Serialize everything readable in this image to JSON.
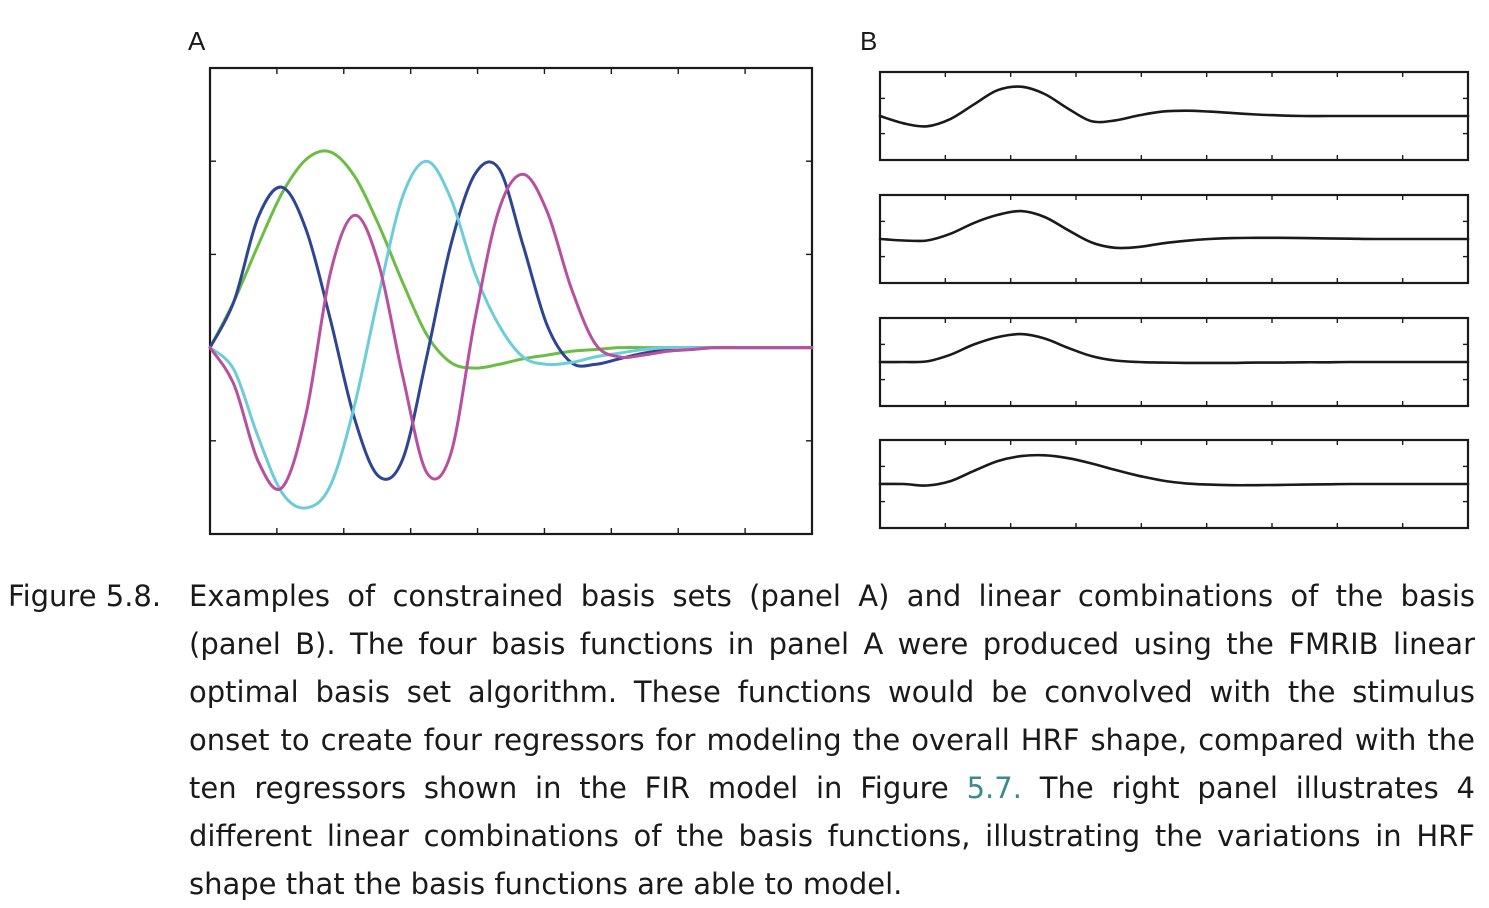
{
  "panel_labels": {
    "a": "A",
    "b": "B"
  },
  "caption": {
    "label": "Figure 5.8.",
    "text_before_link": "Examples of constrained basis sets (panel A) and linear combinations of the basis (panel B). The four basis functions in panel A were produced using the FMRIB linear optimal basis set algorithm. These functions would be convolved with the stimulus onset to create four regressors for modeling the overall HRF shape, compared with the ten regressors shown in the FIR model in Figure ",
    "link_text": "5.7.",
    "text_after_link": " The right panel illustrates 4 different linear combinations of the basis functions, illustrating the variations in HRF shape that the basis functions are able to model.",
    "link_color": "#3b8a8f"
  },
  "chart_data": [
    {
      "type": "line",
      "panel": "A",
      "title": "",
      "xlabel": "",
      "ylabel": "",
      "xlim": [
        0,
        25
      ],
      "ylim": [
        -1.0,
        1.5
      ],
      "grid": false,
      "x": [
        0,
        1,
        2,
        3,
        4,
        5,
        6,
        7,
        8,
        9,
        10,
        11,
        12,
        13,
        14,
        15,
        16,
        17,
        18,
        19,
        20,
        21,
        22,
        23,
        24,
        25
      ],
      "series": [
        {
          "color": "#6cbd45",
          "values": [
            0,
            0.25,
            0.55,
            0.83,
            1.01,
            1.05,
            0.92,
            0.66,
            0.35,
            0.07,
            -0.08,
            -0.11,
            -0.09,
            -0.06,
            -0.04,
            -0.02,
            -0.01,
            0,
            0,
            0,
            0,
            0,
            0,
            0,
            0,
            0
          ]
        },
        {
          "color": "#2e4494",
          "values": [
            0,
            0.25,
            0.7,
            0.86,
            0.63,
            0.15,
            -0.38,
            -0.69,
            -0.6,
            -0.05,
            0.55,
            0.93,
            0.96,
            0.55,
            0.12,
            -0.08,
            -0.09,
            -0.06,
            -0.03,
            -0.01,
            0,
            0,
            0,
            0,
            0,
            0
          ]
        },
        {
          "color": "#6ccdd8",
          "values": [
            0,
            -0.12,
            -0.48,
            -0.78,
            -0.86,
            -0.74,
            -0.31,
            0.28,
            0.81,
            1.0,
            0.8,
            0.4,
            0.12,
            -0.05,
            -0.09,
            -0.08,
            -0.05,
            -0.03,
            -0.01,
            0,
            0,
            0,
            0,
            0,
            0,
            0
          ]
        },
        {
          "color": "#b84f9f",
          "values": [
            0,
            -0.2,
            -0.61,
            -0.75,
            -0.35,
            0.4,
            0.71,
            0.45,
            -0.15,
            -0.67,
            -0.57,
            0.15,
            0.74,
            0.93,
            0.73,
            0.32,
            0.02,
            -0.05,
            -0.04,
            -0.02,
            -0.01,
            0,
            0,
            0,
            0,
            0
          ]
        }
      ]
    },
    {
      "type": "line",
      "panel": "B",
      "title": "",
      "xlabel": "",
      "ylabel": "",
      "xlim": [
        0,
        25
      ],
      "ylim": [
        -1,
        1
      ],
      "grid": false,
      "x": [
        0,
        1,
        2,
        3,
        4,
        5,
        6,
        7,
        8,
        9,
        10,
        11,
        12,
        13,
        14,
        15,
        16,
        17,
        18,
        19,
        20,
        21,
        22,
        23,
        24,
        25
      ],
      "series": [
        {
          "color": "#1a1a1a",
          "values": [
            0,
            -0.25,
            -0.35,
            -0.1,
            0.4,
            0.88,
            1.0,
            0.75,
            0.25,
            -0.18,
            -0.15,
            0.02,
            0.15,
            0.18,
            0.15,
            0.1,
            0.05,
            0.02,
            0,
            0,
            0,
            0,
            0,
            0,
            0,
            0
          ]
        },
        {
          "color": "#1a1a1a",
          "values": [
            0,
            -0.05,
            -0.05,
            0.18,
            0.55,
            0.82,
            0.95,
            0.75,
            0.3,
            -0.12,
            -0.3,
            -0.27,
            -0.15,
            -0.06,
            0,
            0.03,
            0.04,
            0.04,
            0.03,
            0.02,
            0.01,
            0,
            0,
            0,
            0,
            0
          ]
        },
        {
          "color": "#1a1a1a",
          "values": [
            0,
            0,
            0.02,
            0.25,
            0.6,
            0.85,
            0.95,
            0.8,
            0.48,
            0.2,
            0.05,
            0,
            -0.02,
            -0.03,
            -0.03,
            -0.03,
            -0.02,
            -0.02,
            -0.01,
            -0.01,
            0,
            0,
            0,
            0,
            0,
            0
          ]
        },
        {
          "color": "#1a1a1a",
          "values": [
            0,
            0,
            -0.05,
            0.1,
            0.45,
            0.78,
            0.95,
            0.98,
            0.88,
            0.7,
            0.48,
            0.28,
            0.12,
            0.02,
            -0.02,
            -0.04,
            -0.04,
            -0.03,
            -0.02,
            -0.01,
            0,
            0,
            0,
            0,
            0,
            0
          ]
        }
      ]
    }
  ]
}
